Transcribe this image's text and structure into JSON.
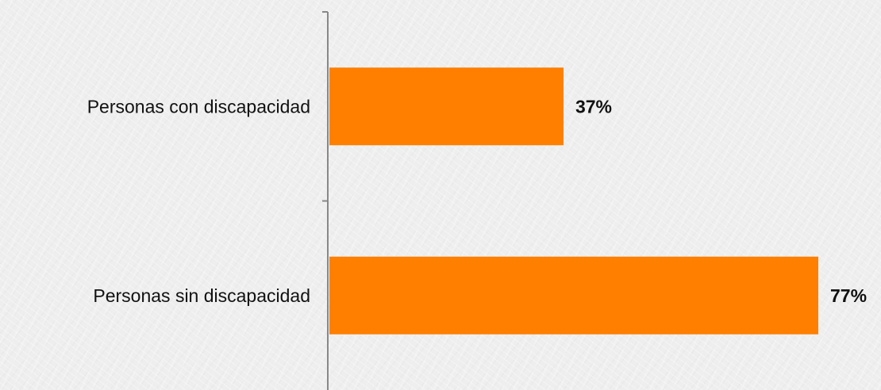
{
  "chart_data": {
    "type": "bar",
    "orientation": "horizontal",
    "categories": [
      "Personas con discapacidad",
      "Personas sin discapacidad"
    ],
    "values": [
      37,
      77
    ],
    "value_labels": [
      "37%",
      "77%"
    ],
    "title": "",
    "xlabel": "",
    "ylabel": "",
    "xlim": [
      0,
      77
    ],
    "grid": false,
    "legend": "none",
    "bar_color": "#ff7f00",
    "axis_color": "#888888"
  }
}
